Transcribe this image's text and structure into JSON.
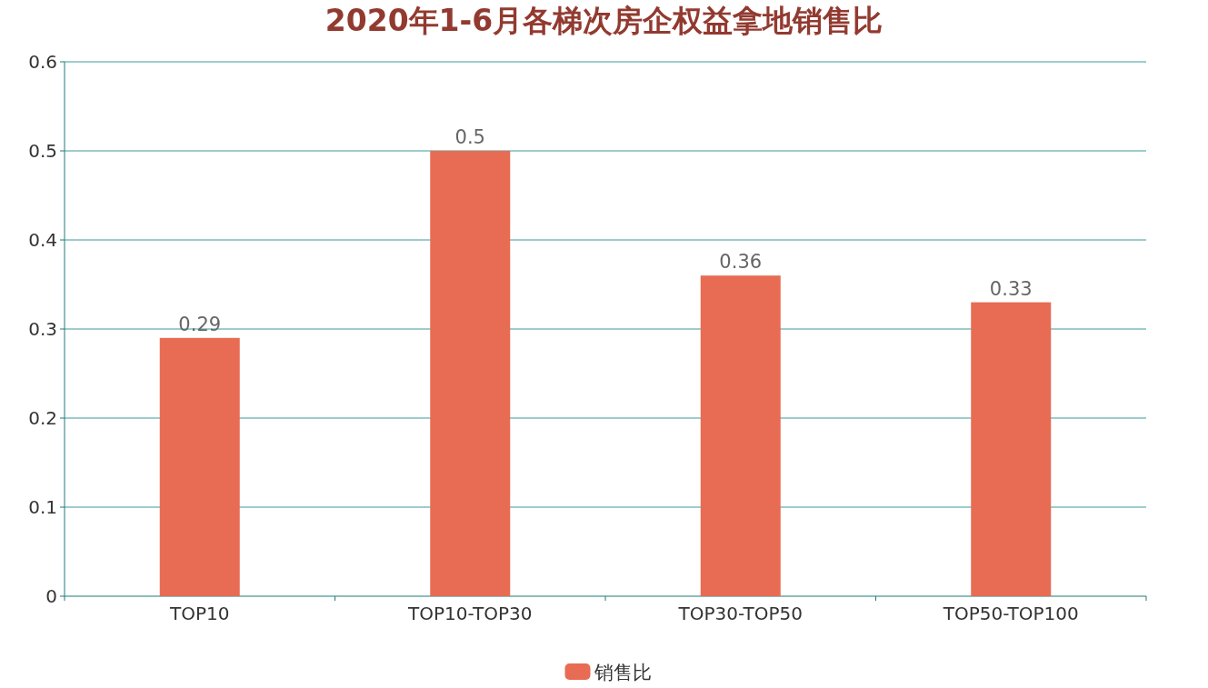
{
  "chart_data": {
    "type": "bar",
    "title": "2020年1-6月各梯次房企权益拿地销售比",
    "categories": [
      "TOP10",
      "TOP10-TOP30",
      "TOP30-TOP50",
      "TOP50-TOP100"
    ],
    "series": [
      {
        "name": "销售比",
        "color": "#e76c53",
        "values": [
          0.29,
          0.5,
          0.36,
          0.33
        ]
      }
    ],
    "ylim": [
      0,
      0.6
    ],
    "yticks": [
      0,
      0.1,
      0.2,
      0.3,
      0.4,
      0.5,
      0.6
    ],
    "grid": "y",
    "legend": "bottom",
    "data_labels": true
  }
}
